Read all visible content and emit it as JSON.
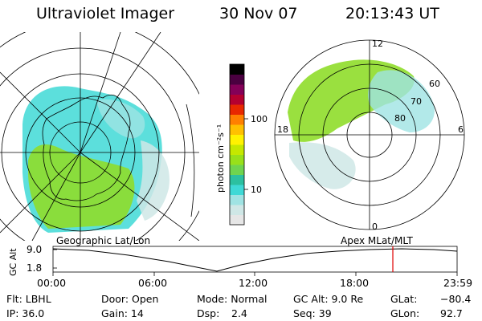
{
  "header": {
    "instrument": "Ultraviolet Imager",
    "date": "30 Nov 07",
    "time": "20:13:43 UT"
  },
  "colorbar": {
    "label": "photon cm⁻²s⁻¹",
    "ticks": [
      "100",
      "10"
    ],
    "colors": [
      "#e6e6e6",
      "#cfe7e6",
      "#9fe3e3",
      "#3fd9d6",
      "#2cc0a0",
      "#6fd44f",
      "#98e01a",
      "#c5e800",
      "#fff200",
      "#ffc000",
      "#ff8000",
      "#e82800",
      "#b40030",
      "#840058",
      "#4a0040",
      "#000000"
    ]
  },
  "left_map": {
    "title": "Geographic Lat/Lon"
  },
  "right_map": {
    "title": "Apex MLat/MLT",
    "mlt_labels": {
      "top": "12",
      "bottom": "0",
      "left": "18",
      "right": "6"
    },
    "lat_labels": [
      "60",
      "70",
      "80"
    ]
  },
  "altitude_plot": {
    "ylabel": "GC Alt",
    "yticks": [
      "9.0",
      "1.8"
    ],
    "xticks": [
      "00:00",
      "06:00",
      "12:00",
      "18:00",
      "23:59"
    ],
    "marker_time": "20:13",
    "marker_color": "#e00000"
  },
  "status": {
    "filter": "Flt: LBHL",
    "ip": "IP: 36.0",
    "door": "Door: Open",
    "gain": "Gain: 14",
    "mode": "Mode: Normal",
    "dsp_label": "Dsp:",
    "dsp_value": "2.4",
    "gc_alt": "GC Alt: 9.0 Re",
    "seq": "Seq: 39",
    "glat_label": "GLat:",
    "glat_value": "−80.4",
    "glon_label": "GLon:",
    "glon_value": "92.7"
  }
}
